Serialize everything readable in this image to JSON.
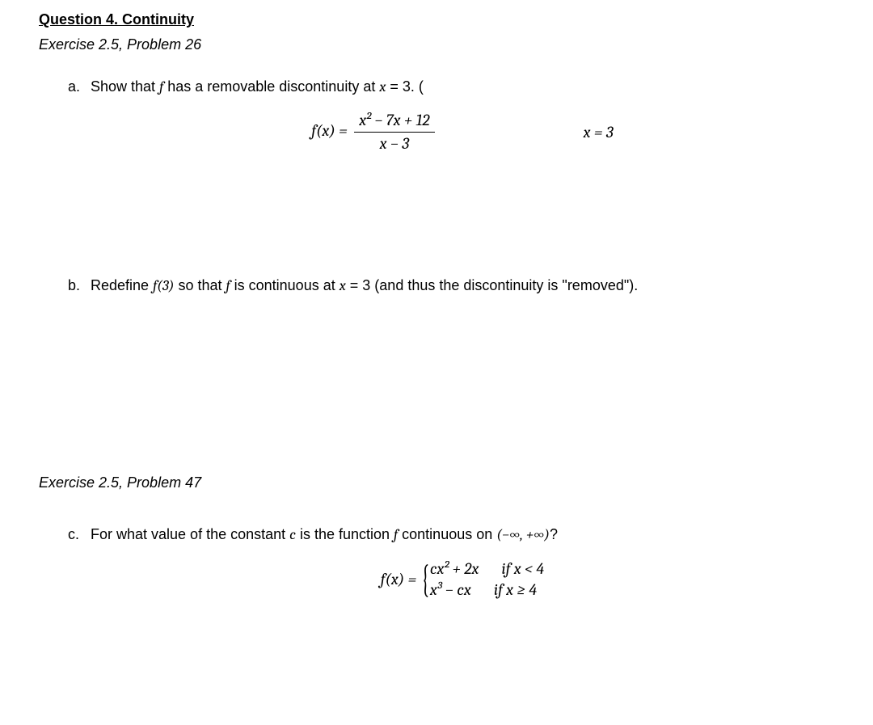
{
  "question": {
    "title": "Question 4. Continuity",
    "exercise_a_ref": "Exercise 2.5, Problem 26",
    "exercise_c_ref": "Exercise 2.5, Problem 47"
  },
  "part_a": {
    "label": "a.",
    "prompt_pre": "Show that ",
    "prompt_f": "f",
    "prompt_mid": " has a removable discontinuity at ",
    "prompt_eq_lhs": "x",
    "prompt_eq_op": " = ",
    "prompt_eq_rhs": "3. ",
    "marker": "(",
    "eq_lhs": "f(x) =",
    "eq_num": "x² − 7x + 12",
    "eq_den": "x − 3",
    "side_cond": "x = 3"
  },
  "part_b": {
    "label": "b.",
    "prompt_pre": "Redefine ",
    "prompt_f3": "f(3)",
    "prompt_mid1": " so that ",
    "prompt_f": "f",
    "prompt_mid2": " is continuous at ",
    "prompt_eq_lhs": "x",
    "prompt_eq_op": " = ",
    "prompt_eq_rhs": "3",
    "prompt_tail": " (and thus the discontinuity is \"removed\"). "
  },
  "part_c": {
    "label": "c.",
    "prompt_pre": "For what value of the constant ",
    "prompt_c": "c",
    "prompt_mid1": " is the function ",
    "prompt_f": "f",
    "prompt_mid2": " continuous on ",
    "prompt_interval": "(−∞, +∞)",
    "prompt_tail": "?",
    "eq_lhs": "f(x) =",
    "case1_expr": "cx² + 2x",
    "case1_cond": "if x < 4",
    "case2_expr": "x³ − cx",
    "case2_cond": "if x ≥ 4"
  },
  "colors": {
    "text": "#000000",
    "background": "#ffffff"
  },
  "fonts": {
    "body_family": "Century Gothic",
    "math_family": "Cambria",
    "body_size_pt": 14,
    "math_size_pt": 15
  }
}
